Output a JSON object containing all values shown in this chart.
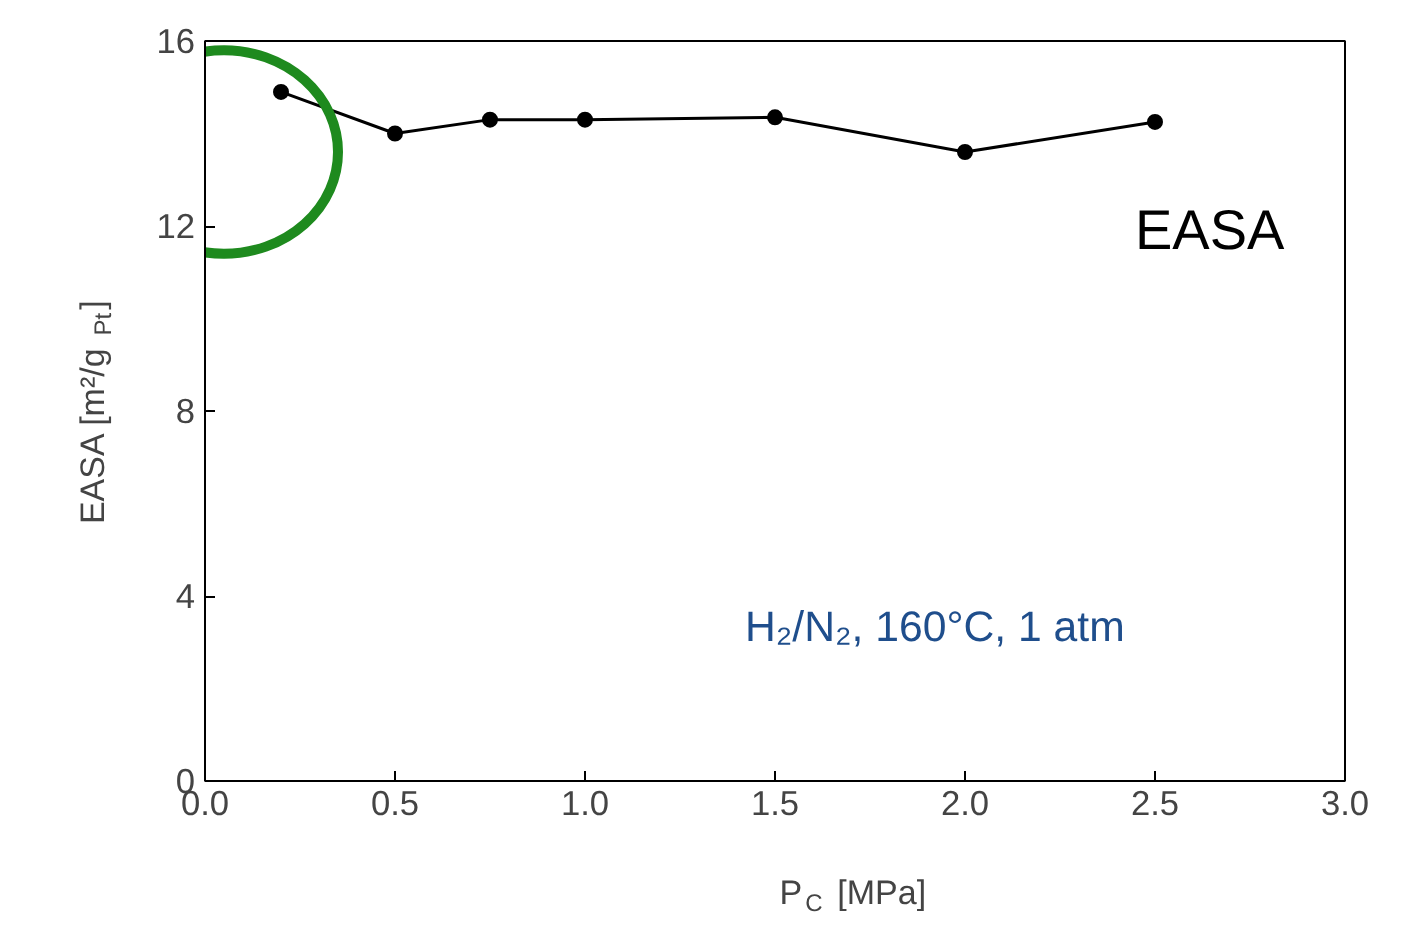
{
  "chart_data": {
    "type": "line",
    "xlabel": "P$_{C}$ [MPa]",
    "ylabel": "EASA [m²/g$_{Pt}$]",
    "x": [
      0.2,
      0.5,
      0.75,
      1.0,
      1.5,
      2.0,
      2.5
    ],
    "series": [
      {
        "color": "#000000",
        "values": [
          14.9,
          14.0,
          14.3,
          14.3,
          14.35,
          13.6,
          14.25
        ]
      }
    ],
    "marker": "circle",
    "line_style": "solid",
    "grid": false,
    "xlim": [
      0,
      3
    ],
    "xticks": [
      {
        "value": 0,
        "label": "0.0"
      },
      {
        "value": 0.5,
        "label": "0.5"
      },
      {
        "value": 1,
        "label": "1.0"
      },
      {
        "value": 1.5,
        "label": "1.5"
      },
      {
        "value": 2,
        "label": "2.0"
      },
      {
        "value": 2.5,
        "label": "2.5"
      },
      {
        "value": 3,
        "label": "3.0"
      }
    ],
    "ylim": [
      0,
      16
    ],
    "yticks": [
      0,
      4,
      8,
      12,
      16
    ],
    "annotations": [
      "EASA",
      "H₂/N₂, 160°C, 1 atm"
    ]
  }
}
